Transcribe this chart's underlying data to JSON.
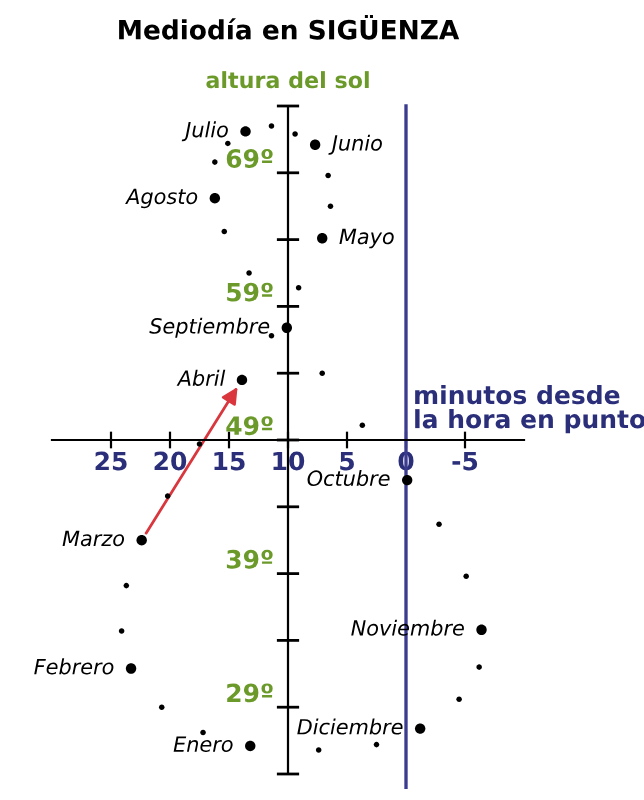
{
  "chart_data": {
    "type": "scatter",
    "title": "Mediodía en SIGÜENZA",
    "xlabel": "minutos desde\nla hora en punto",
    "ylabel": "altura del sol",
    "xlim": [
      30,
      -10
    ],
    "xticks": [
      25,
      20,
      15,
      10,
      5,
      0,
      -5
    ],
    "ylim": [
      24,
      74
    ],
    "yticks": [
      {
        "value": 29,
        "label": "29º"
      },
      {
        "value": 39,
        "label": "39º"
      },
      {
        "value": 49,
        "label": "49º"
      },
      {
        "value": 59,
        "label": "59º"
      },
      {
        "value": 69,
        "label": "69º"
      }
    ],
    "grid": false,
    "legend": false,
    "marker": "circle",
    "ref_lines": [
      {
        "axis": "x",
        "value": 0,
        "color": "#3b3b8f"
      }
    ],
    "series": [
      {
        "color": "#000000",
        "x": [
          13.2,
          23.3,
          22.4,
          13.9,
          7.1,
          7.7,
          13.6,
          16.2,
          10.1,
          -0.1,
          -6.4,
          -1.2
        ],
        "values": [
          26.1,
          31.9,
          41.5,
          53.5,
          64.1,
          71.1,
          72.1,
          67.1,
          57.4,
          46.0,
          34.8,
          27.4
        ]
      },
      {
        "color": "#000000",
        "x": [
          15.1,
          11.4,
          9.4,
          16.2,
          6.6,
          6.4,
          15.4,
          13.3,
          9.1,
          11.4,
          7.1,
          3.7,
          17.5,
          20.2,
          -2.8,
          -5.1,
          23.7,
          24.1,
          -6.2,
          20.7,
          -4.5,
          17.2,
          2.5,
          7.4
        ],
        "values": [
          71.2,
          72.5,
          71.9,
          69.8,
          68.8,
          66.5,
          64.6,
          61.5,
          60.4,
          56.8,
          54.0,
          50.1,
          48.7,
          44.8,
          42.7,
          38.8,
          38.1,
          34.7,
          32.0,
          29.0,
          29.6,
          27.1,
          26.2,
          25.8
        ]
      }
    ],
    "annotations": [
      {
        "text": "Enero",
        "x": 13.2,
        "y": 26.1
      },
      {
        "text": "Febrero",
        "x": 23.3,
        "y": 31.9
      },
      {
        "text": "Marzo",
        "x": 22.4,
        "y": 41.5
      },
      {
        "text": "Abril",
        "x": 13.9,
        "y": 53.5
      },
      {
        "text": "Mayo",
        "x": 7.1,
        "y": 64.1
      },
      {
        "text": "Junio",
        "x": 7.7,
        "y": 71.1
      },
      {
        "text": "Julio",
        "x": 13.6,
        "y": 72.1
      },
      {
        "text": "Agosto",
        "x": 16.2,
        "y": 67.1
      },
      {
        "text": "Septiembre",
        "x": 10.1,
        "y": 57.4
      },
      {
        "text": "Octubre",
        "x": -0.1,
        "y": 46.0
      },
      {
        "text": "Noviembre",
        "x": -6.4,
        "y": 34.8
      },
      {
        "text": "Diciembre",
        "x": -1.2,
        "y": 27.4
      }
    ]
  }
}
